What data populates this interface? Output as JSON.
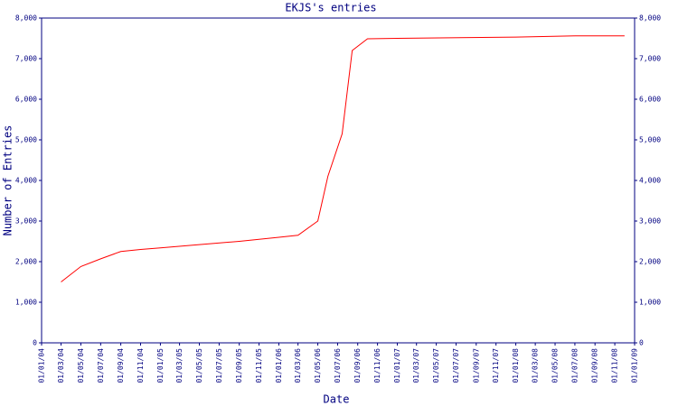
{
  "chart_data": {
    "type": "line",
    "title": "EKJS's entries",
    "xlabel": "Date",
    "ylabel": "Number of Entries",
    "x": [
      "01/03/04",
      "01/05/04",
      "01/07/04",
      "01/09/04",
      "01/11/04",
      "01/01/05",
      "01/05/05",
      "01/09/05",
      "01/01/06",
      "01/03/06",
      "01/05/06",
      "01/06/06",
      "15/07/06",
      "15/08/06",
      "01/10/06",
      "01/01/07",
      "01/01/08",
      "01/07/08",
      "01/12/08"
    ],
    "series": [
      {
        "name": "EKJS",
        "color": "#ff0000",
        "values": [
          1500,
          1880,
          2070,
          2250,
          2300,
          2340,
          2420,
          2500,
          2600,
          2650,
          3000,
          4100,
          5150,
          7200,
          7490,
          7500,
          7530,
          7560,
          7560
        ]
      }
    ],
    "xlim": [
      "01/01/04",
      "01/01/09"
    ],
    "xticks": [
      "01/01/04",
      "01/03/04",
      "01/05/04",
      "01/07/04",
      "01/09/04",
      "01/11/04",
      "01/01/05",
      "01/03/05",
      "01/05/05",
      "01/07/05",
      "01/09/05",
      "01/11/05",
      "01/01/06",
      "01/03/06",
      "01/05/06",
      "01/07/06",
      "01/09/06",
      "01/11/06",
      "01/01/07",
      "01/03/07",
      "01/05/07",
      "01/07/07",
      "01/09/07",
      "01/11/07",
      "01/01/08",
      "01/03/08",
      "01/05/08",
      "01/07/08",
      "01/09/08",
      "01/11/08",
      "01/01/09"
    ],
    "ylim": [
      0,
      8000
    ],
    "yticks": [
      0,
      {
        "value": 1000,
        "label": "1,000"
      },
      {
        "value": 2000,
        "label": "2,000"
      },
      {
        "value": 3000,
        "label": "3,000"
      },
      {
        "value": 4000,
        "label": "4,000"
      },
      {
        "value": 5000,
        "label": "5,000"
      },
      {
        "value": 6000,
        "label": "6,000"
      },
      {
        "value": 7000,
        "label": "7,000"
      },
      {
        "value": 8000,
        "label": "8,000"
      }
    ],
    "axis_color": "#000080"
  }
}
